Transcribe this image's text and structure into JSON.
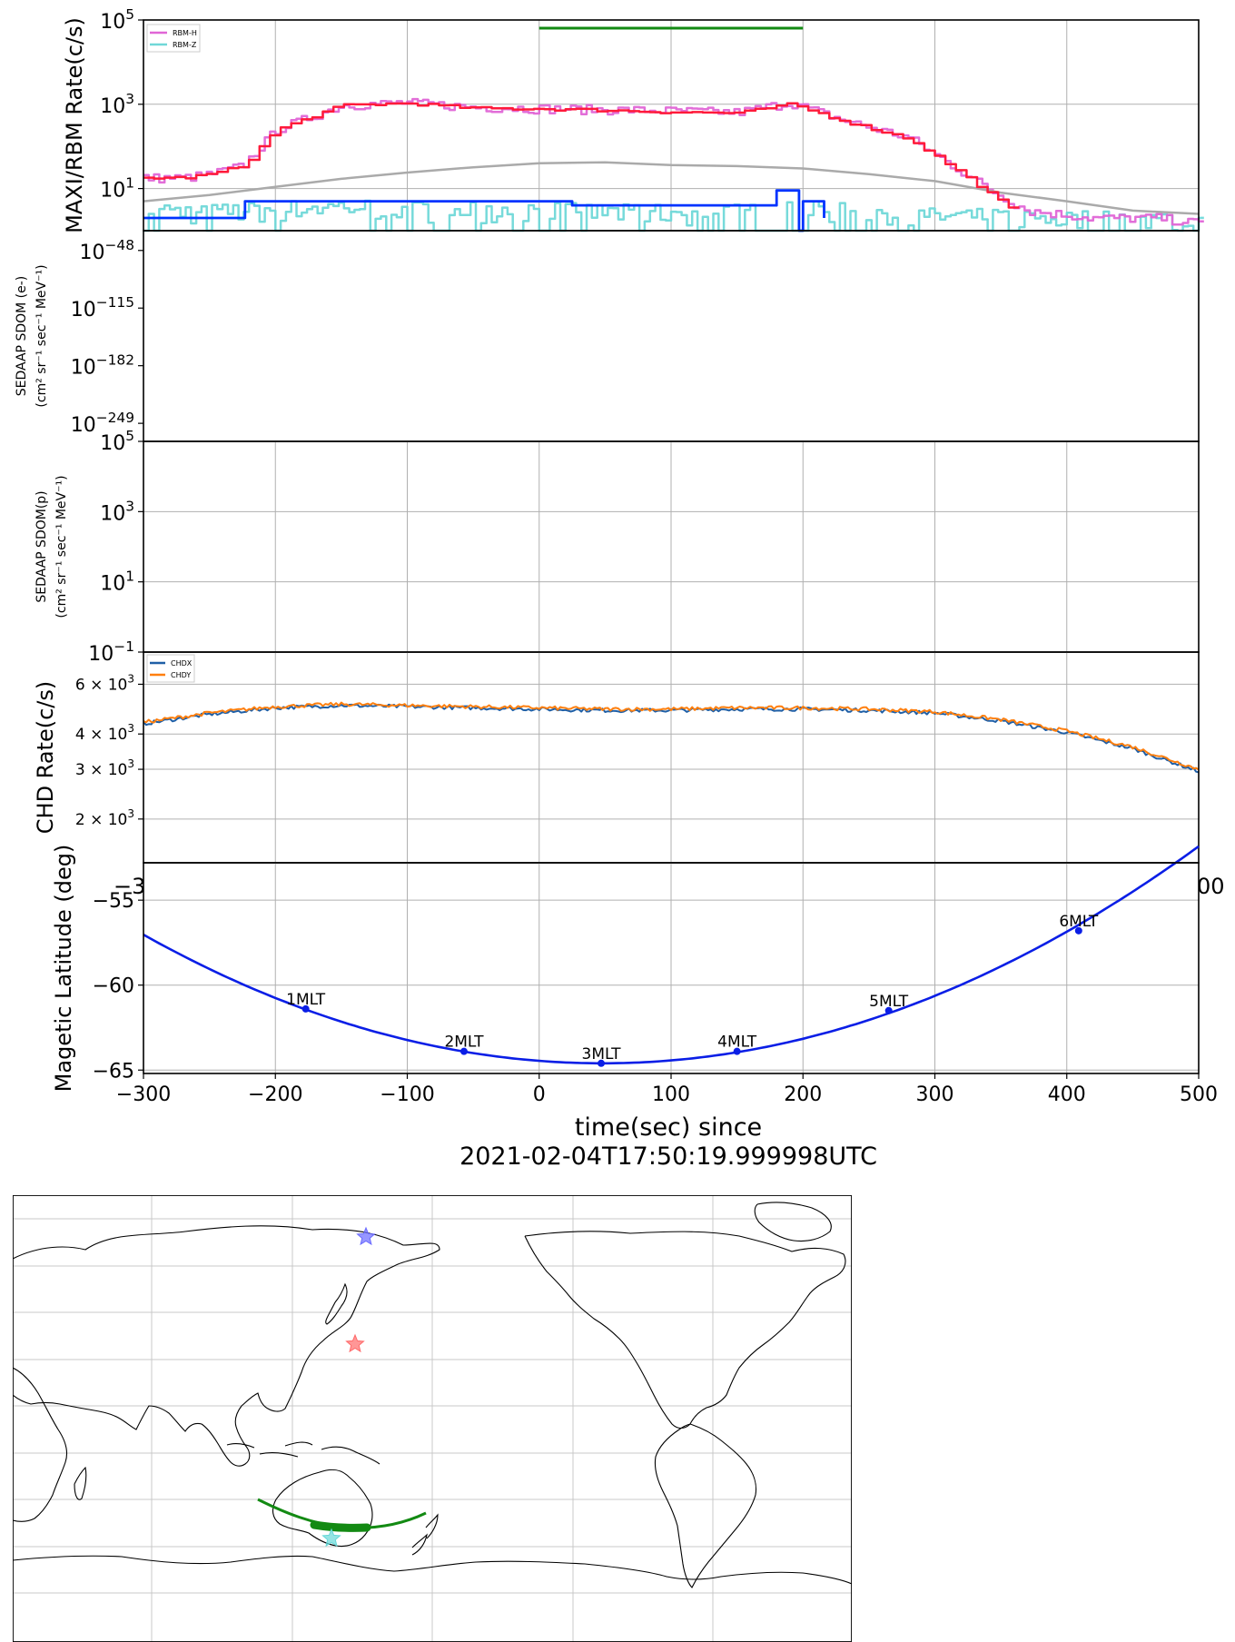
{
  "chart_data": [
    {
      "type": "line",
      "panel": "MAXI/RBM rate",
      "ylabel": "MAXI/RBM Rate(c/s)",
      "yscale": "log",
      "xlim": [
        -300,
        500
      ],
      "ylim": [
        1,
        100000
      ],
      "yticks": [
        {
          "v": 10,
          "exp": "1"
        },
        {
          "v": 1000,
          "exp": "3"
        },
        {
          "v": 100000,
          "exp": "5"
        }
      ],
      "grid": true,
      "legend_position": "top-left",
      "series": [
        {
          "name": "RBM-H",
          "color": "#e066d6",
          "x": [
            -300,
            -270,
            -250,
            -225,
            -200,
            -150,
            -100,
            -50,
            0,
            50,
            100,
            150,
            190,
            230,
            280,
            320,
            345,
            370,
            420,
            470,
            500
          ],
          "y": [
            18,
            18,
            22,
            35,
            250,
            950,
            1100,
            850,
            800,
            750,
            700,
            650,
            1100,
            420,
            160,
            25,
            8,
            3,
            2,
            2,
            1.5
          ]
        },
        {
          "name": "RBM-Z",
          "color": "#70d8d8",
          "x": [
            -300,
            -250,
            -200,
            -150,
            -100,
            -50,
            0,
            50,
            100,
            150,
            200,
            250,
            300,
            350,
            400,
            450,
            500
          ],
          "y": [
            3,
            2.5,
            3,
            3.5,
            3,
            3,
            3,
            2.5,
            2.5,
            2.5,
            3,
            2.5,
            2,
            2,
            1.8,
            1.8,
            1.6
          ]
        },
        {
          "name": "",
          "color": "#ff1a3a",
          "x": [
            -300,
            -270,
            -250,
            -225,
            -200,
            -150,
            -100,
            -50,
            0,
            50,
            100,
            150,
            190,
            230,
            280,
            320,
            345,
            362
          ],
          "y": [
            18,
            18,
            22,
            35,
            250,
            950,
            1050,
            800,
            780,
            720,
            650,
            620,
            1000,
            400,
            150,
            22,
            6,
            2.5
          ]
        },
        {
          "name": "",
          "color": "#aaaaaa",
          "x": [
            -300,
            -250,
            -200,
            -150,
            -100,
            -50,
            0,
            50,
            100,
            150,
            200,
            250,
            300,
            350,
            400,
            450,
            500
          ],
          "y": [
            5,
            7,
            11,
            17,
            24,
            32,
            40,
            42,
            36,
            34,
            30,
            22,
            15,
            8,
            5,
            3,
            2.5
          ]
        },
        {
          "name": "",
          "color": "#0033ff",
          "x": [
            -300,
            -223,
            -223,
            25,
            25,
            180,
            180,
            197,
            197,
            200,
            200,
            216,
            216
          ],
          "y": [
            2,
            2,
            5,
            5,
            4,
            4,
            9,
            9,
            1,
            1,
            5,
            5,
            2
          ]
        }
      ],
      "interval": {
        "x": [
          0,
          200
        ],
        "color": "#138a13"
      }
    },
    {
      "type": "line",
      "panel": "SEDAAP SDOM electrons",
      "ylabel": "SEDAAP SDOM (e-)",
      "ylabel_units": "(cm² sr⁻¹ sec⁻¹ MeV⁻¹)",
      "yscale": "log",
      "yticks": [
        {
          "v": -48,
          "exp": "−48"
        },
        {
          "v": -115,
          "exp": "−115"
        },
        {
          "v": -182,
          "exp": "−182"
        },
        {
          "v": -249,
          "exp": "−249"
        }
      ],
      "series": []
    },
    {
      "type": "line",
      "panel": "SEDAAP SDOM protons",
      "ylabel": "SEDAAP SDOM(p)",
      "ylabel_units": "(cm² sr⁻¹ sec⁻¹ MeV⁻¹)",
      "yscale": "log",
      "ylim": [
        0.1,
        100000
      ],
      "yticks": [
        {
          "v": 0.1,
          "exp": "−1"
        },
        {
          "v": 10,
          "exp": "1"
        },
        {
          "v": 1000,
          "exp": "3"
        },
        {
          "v": 100000,
          "exp": "5"
        }
      ],
      "grid": true,
      "series": []
    },
    {
      "type": "line",
      "panel": "CHD rate",
      "ylabel": "CHD Rate(c/s)",
      "yscale": "log",
      "ylim": [
        1400,
        7800
      ],
      "yticks": [
        {
          "v": 2000,
          "m": "2"
        },
        {
          "v": 3000,
          "m": "3"
        },
        {
          "v": 4000,
          "m": "4"
        },
        {
          "v": 6000,
          "m": "6"
        }
      ],
      "grid": true,
      "legend_position": "top-left",
      "series": [
        {
          "name": "CHDX",
          "color": "#1f5fa6",
          "x": [
            -300,
            -250,
            -200,
            -150,
            -100,
            -50,
            0,
            50,
            100,
            150,
            200,
            250,
            300,
            350,
            400,
            450,
            500
          ],
          "y": [
            4350,
            4700,
            4950,
            5050,
            5000,
            4950,
            4900,
            4850,
            4850,
            4900,
            4900,
            4850,
            4750,
            4450,
            4050,
            3550,
            2950
          ]
        },
        {
          "name": "CHDY",
          "color": "#ff7f0e",
          "x": [
            -300,
            -250,
            -200,
            -150,
            -100,
            -50,
            0,
            50,
            100,
            150,
            200,
            250,
            300,
            350,
            400,
            450,
            500
          ],
          "y": [
            4400,
            4750,
            5000,
            5100,
            5050,
            5000,
            4950,
            4900,
            4900,
            4950,
            4950,
            4900,
            4800,
            4500,
            4100,
            3600,
            3000
          ]
        }
      ]
    },
    {
      "type": "line",
      "panel": "Magnetic latitude",
      "ylabel": "Magetic Latitude  (deg)",
      "xlabel": "time(sec) since",
      "xlabel_2": "2021-02-04T17:50:19.999998UTC",
      "xlim": [
        -300,
        500
      ],
      "ylim": [
        -65.2,
        -52.8
      ],
      "xticks": [
        "−300",
        "−200",
        "−100",
        "0",
        "100",
        "200",
        "300",
        "400",
        "500"
      ],
      "yticks": [
        {
          "v": -55,
          "label": "−55"
        },
        {
          "v": -60,
          "label": "−60"
        },
        {
          "v": -65,
          "label": "−65"
        }
      ],
      "grid": true,
      "series": [
        {
          "name": "",
          "color": "#0a1ee6",
          "curve": {
            "vertex_x": 48,
            "vertex_y": -64.6,
            "k": 6.25e-05
          }
        }
      ],
      "markers": [
        {
          "x": -177,
          "y": -61.4,
          "label": "1MLT"
        },
        {
          "x": -57,
          "y": -63.9,
          "label": "2MLT"
        },
        {
          "x": 47,
          "y": -64.6,
          "label": "3MLT"
        },
        {
          "x": 150,
          "y": -63.9,
          "label": "4MLT"
        },
        {
          "x": 265,
          "y": -61.5,
          "label": "5MLT"
        },
        {
          "x": 409,
          "y": -56.8,
          "label": "6MLT"
        }
      ],
      "overlap_tick_fragments": [
        "−3",
        "00"
      ]
    }
  ],
  "map": {
    "projection": "plate carrée, 180° centred",
    "grid": true,
    "track_color": "#138a13",
    "markers": [
      {
        "symbol": "star",
        "color": "#6a6aff"
      },
      {
        "symbol": "star",
        "color": "#ff6a6a"
      },
      {
        "symbol": "star",
        "color": "#66d8d8"
      }
    ]
  }
}
